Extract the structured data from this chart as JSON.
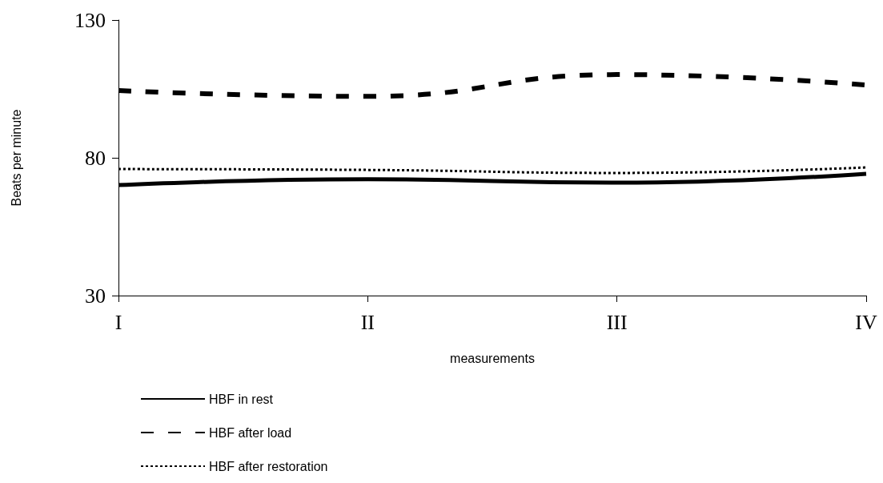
{
  "chart_data": {
    "type": "line",
    "xlabel": "measurements",
    "ylabel": "Beats per minute",
    "categories": [
      "I",
      "II",
      "III",
      "IV"
    ],
    "series": [
      {
        "name": "HBF in rest",
        "color": "#000000",
        "line_style": "solid",
        "values": [
          70.1,
          72.2,
          71,
          74.2
        ]
      },
      {
        "name": "HBF after load",
        "color": "#000000",
        "line_style": "dashed",
        "values": [
          104.4,
          102.3,
          110.2,
          106.4
        ]
      },
      {
        "name": "HBF after restoration",
        "color": "#000000",
        "line_style": "dotted",
        "values": [
          75.9,
          75.6,
          74.5,
          76.5
        ]
      }
    ],
    "ylim": [
      30,
      130
    ],
    "yticks": [
      30,
      80,
      130
    ],
    "grid": false,
    "legend": "bottom",
    "marker": "none"
  }
}
